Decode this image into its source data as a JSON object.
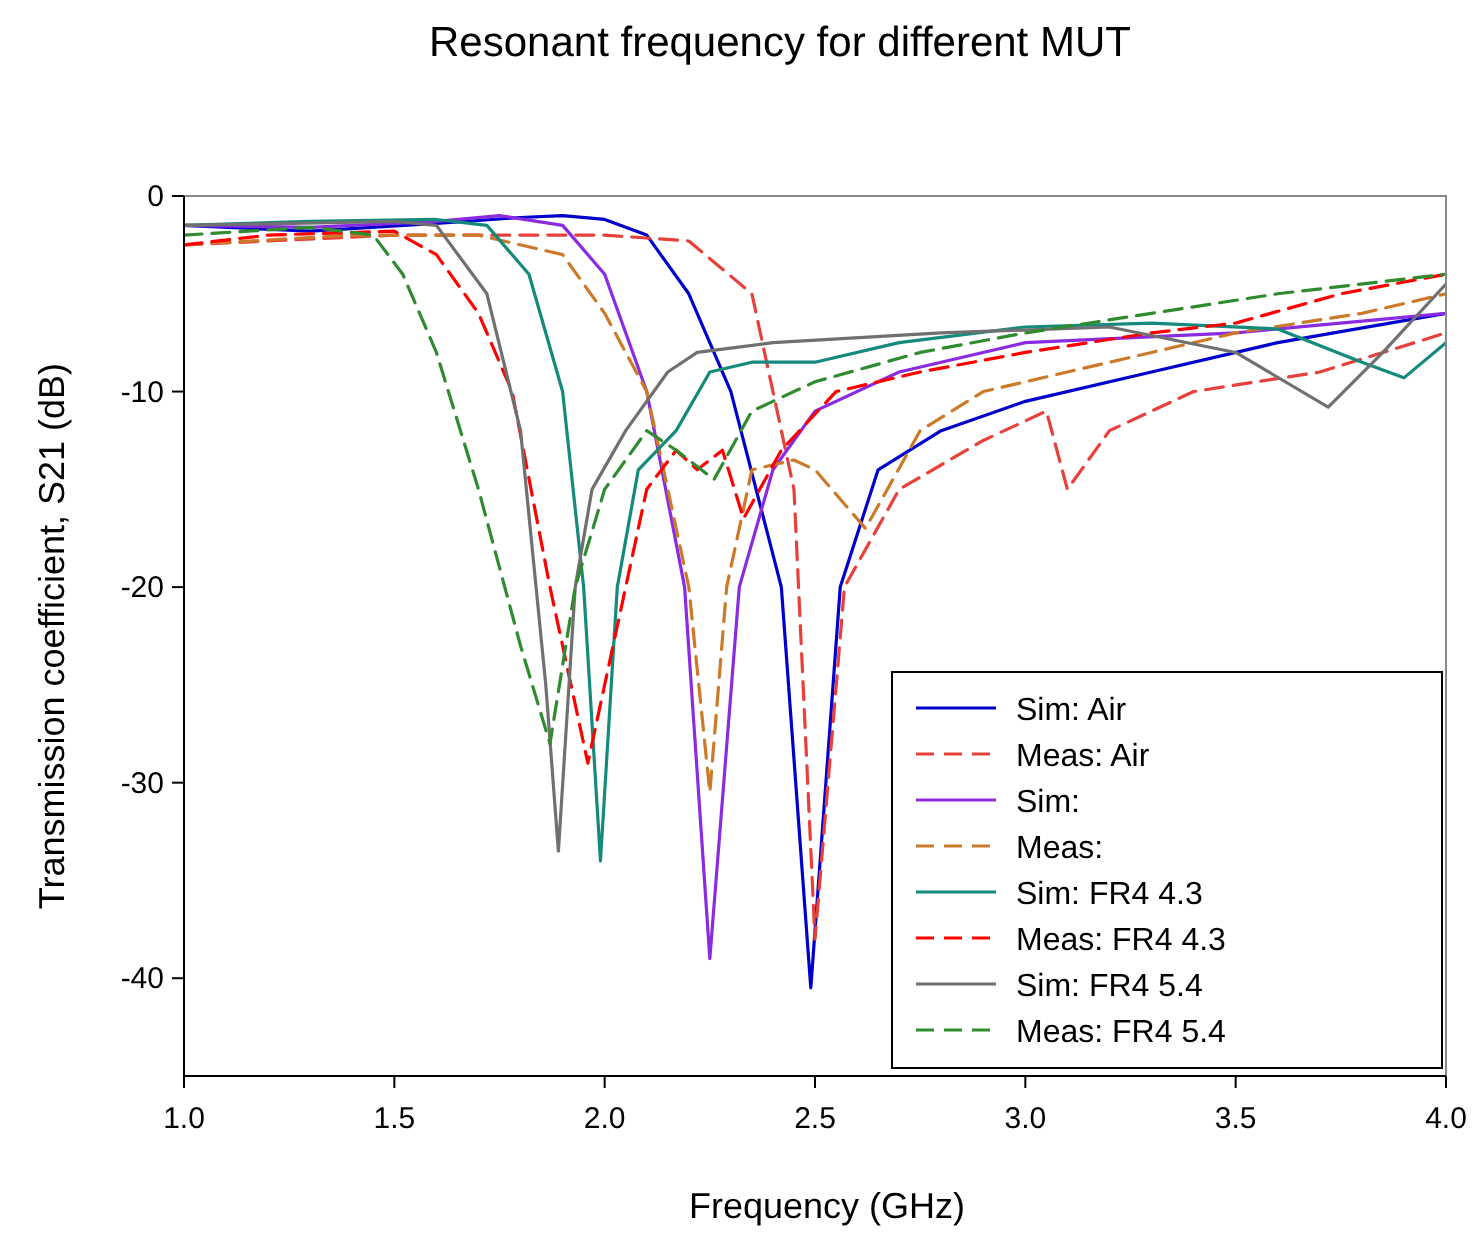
{
  "chart_data": {
    "type": "line",
    "title": "Resonant frequency for different MUT",
    "xlabel": "Frequency (GHz)",
    "ylabel": "Transmission coefficient, S21 (dB)",
    "xlim": [
      1,
      4
    ],
    "ylim": [
      -45,
      0
    ],
    "xticks": [
      {
        "value": 1,
        "label": "1.0"
      },
      {
        "value": 1.5,
        "label": "1.5"
      },
      {
        "value": 2,
        "label": "2.0"
      },
      {
        "value": 2.5,
        "label": "2.5"
      },
      {
        "value": 3,
        "label": "3.0"
      },
      {
        "value": 3.5,
        "label": "3.5"
      },
      {
        "value": 4,
        "label": "4.0"
      }
    ],
    "yticks": [
      0,
      -10,
      -20,
      -30,
      -40
    ],
    "grid": false,
    "legend": "bottom right",
    "series": [
      {
        "name": "Sim: Air",
        "color": "#0000cc",
        "line_style": "solid",
        "x": [
          1,
          1.3,
          1.6,
          1.8,
          1.9,
          2.0,
          2.1,
          2.2,
          2.3,
          2.42,
          2.49,
          2.56,
          2.65,
          2.8,
          3.0,
          3.3,
          3.6,
          4.0
        ],
        "values": [
          -1.5,
          -1.8,
          -1.4,
          -1.1,
          -1,
          -1.2,
          -2,
          -5,
          -10,
          -20,
          -40.5,
          -20,
          -14,
          -12,
          -10.5,
          -9,
          -7.5,
          -6
        ]
      },
      {
        "name": "Meas: Air",
        "color": "#e8403a",
        "line_style": "dashed",
        "x": [
          1,
          1.5,
          2.0,
          2.2,
          2.35,
          2.45,
          2.5,
          2.57,
          2.7,
          2.9,
          3.05,
          3.1,
          3.2,
          3.4,
          3.7,
          4.0
        ],
        "values": [
          -2.5,
          -2,
          -2,
          -2.3,
          -5,
          -15,
          -38,
          -20,
          -15,
          -12.5,
          -11,
          -15,
          -12,
          -10,
          -9,
          -7
        ]
      },
      {
        "name": "Sim:",
        "color": "#8a2be2",
        "line_style": "solid",
        "x": [
          1,
          1.3,
          1.6,
          1.75,
          1.9,
          2.0,
          2.1,
          2.19,
          2.25,
          2.32,
          2.4,
          2.5,
          2.7,
          3.0,
          3.5,
          4.0
        ],
        "values": [
          -1.5,
          -1.6,
          -1.3,
          -1,
          -1.5,
          -4,
          -10,
          -20,
          -39,
          -20,
          -14,
          -11,
          -9,
          -7.5,
          -7,
          -6
        ]
      },
      {
        "name": "Meas:",
        "color": "#cc7a29",
        "line_style": "dashed",
        "x": [
          1,
          1.4,
          1.7,
          1.9,
          2.0,
          2.1,
          2.2,
          2.25,
          2.29,
          2.35,
          2.45,
          2.5,
          2.62,
          2.75,
          2.9,
          3.1,
          3.3,
          3.5,
          3.8,
          4.0
        ],
        "values": [
          -2.5,
          -2,
          -2,
          -3,
          -6,
          -10,
          -20,
          -30.5,
          -20,
          -14,
          -13.5,
          -14,
          -17,
          -12,
          -10,
          -9,
          -8,
          -7,
          -6,
          -5
        ]
      },
      {
        "name": "Sim: FR4 4.3",
        "color": "#138a7c",
        "line_style": "solid",
        "x": [
          1,
          1.3,
          1.6,
          1.72,
          1.82,
          1.9,
          1.95,
          1.99,
          2.03,
          2.08,
          2.17,
          2.25,
          2.35,
          2.5,
          2.7,
          3.0,
          3.3,
          3.6,
          3.8,
          3.9,
          4.0
        ],
        "values": [
          -1.5,
          -1.3,
          -1.2,
          -1.5,
          -4,
          -10,
          -20,
          -34,
          -20,
          -14,
          -12,
          -9,
          -8.5,
          -8.5,
          -7.5,
          -6.7,
          -6.5,
          -6.8,
          -8.5,
          -9.3,
          -7.5
        ]
      },
      {
        "name": "Meas: FR4 4.3",
        "color": "#ff0000",
        "line_style": "dashed",
        "x": [
          1,
          1.2,
          1.5,
          1.6,
          1.7,
          1.78,
          1.87,
          1.96,
          2.03,
          2.1,
          2.17,
          2.22,
          2.28,
          2.33,
          2.42,
          2.55,
          2.75,
          3.0,
          3.3,
          3.5,
          3.75,
          4.0
        ],
        "values": [
          -2.5,
          -2,
          -1.8,
          -3,
          -6,
          -10,
          -20,
          -29,
          -22,
          -15,
          -13,
          -14,
          -13,
          -16.5,
          -13,
          -10,
          -9,
          -8,
          -7,
          -6.5,
          -5,
          -4
        ]
      },
      {
        "name": "Sim: FR4 5.4",
        "color": "#707070",
        "line_style": "solid",
        "x": [
          1,
          1.5,
          1.6,
          1.72,
          1.8,
          1.86,
          1.89,
          1.93,
          1.97,
          2.05,
          2.15,
          2.22,
          2.4,
          2.8,
          3.2,
          3.5,
          3.72,
          3.85,
          4.0
        ],
        "values": [
          -1.5,
          -1.3,
          -1.5,
          -5,
          -12,
          -25,
          -33.5,
          -20,
          -15,
          -12,
          -9,
          -8,
          -7.5,
          -7,
          -6.7,
          -8,
          -10.8,
          -8,
          -4.5
        ]
      },
      {
        "name": "Meas: FR4 5.4",
        "color": "#2e8b2e",
        "line_style": "dashed",
        "x": [
          1,
          1.3,
          1.45,
          1.52,
          1.6,
          1.7,
          1.8,
          1.87,
          1.93,
          2.0,
          2.1,
          2.17,
          2.26,
          2.35,
          2.5,
          2.75,
          3.0,
          3.3,
          3.6,
          4.0
        ],
        "values": [
          -2,
          -1.6,
          -2,
          -4,
          -8,
          -15,
          -23,
          -28,
          -20,
          -15,
          -12,
          -13,
          -14.5,
          -11,
          -9.5,
          -8,
          -7,
          -6,
          -5,
          -4
        ]
      }
    ]
  }
}
